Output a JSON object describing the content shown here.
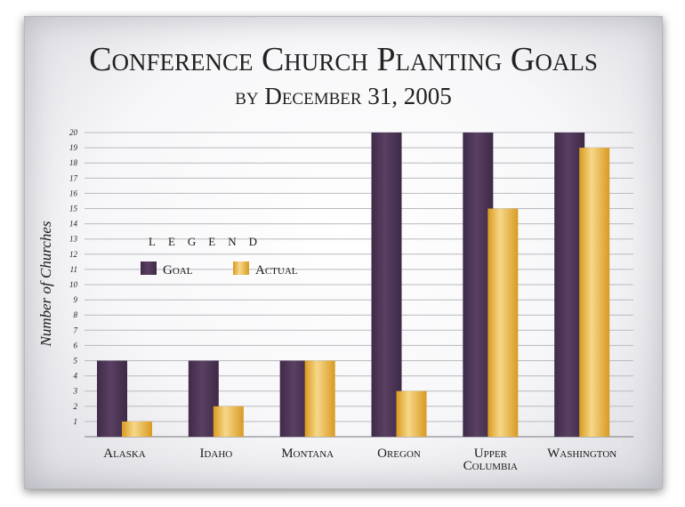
{
  "chart_data": {
    "type": "bar",
    "title": "Conference Church Planting Goals",
    "subtitle": "by December 31, 2005",
    "ylabel": "Number of Churches",
    "xlabel": "",
    "ylim": [
      0,
      20
    ],
    "yticks": [
      1,
      2,
      3,
      4,
      5,
      6,
      7,
      8,
      9,
      10,
      11,
      12,
      13,
      14,
      15,
      16,
      17,
      18,
      19,
      20
    ],
    "grid": true,
    "legend": {
      "title": "LEGEND",
      "position": "middle-left"
    },
    "categories": [
      "Alaska",
      "Idaho",
      "Montana",
      "Oregon",
      "Upper Columbia",
      "Washington"
    ],
    "series": [
      {
        "name": "Goal",
        "color": "#4e3757",
        "values": [
          5,
          5,
          5,
          20,
          20,
          20
        ]
      },
      {
        "name": "Actual",
        "color": "#e8b43a",
        "values": [
          1,
          2,
          5,
          3,
          15,
          19
        ]
      }
    ]
  }
}
